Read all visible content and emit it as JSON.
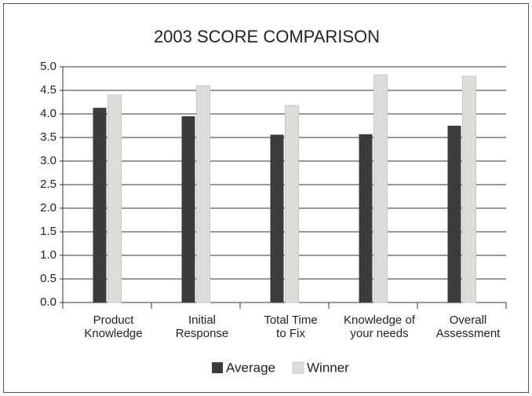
{
  "chart_data": {
    "type": "bar",
    "title": "2003 SCORE COMPARISON",
    "categories": [
      "Product\nKnowledge",
      "Initial\nResponse",
      "Total Time\nto Fix",
      "Knowledge of\nyour needs",
      "Overall\nAssessment"
    ],
    "series": [
      {
        "name": "Average",
        "color": "#3b3d3a",
        "values": [
          4.13,
          3.95,
          3.56,
          3.57,
          3.75
        ]
      },
      {
        "name": "Winner",
        "color": "#dddcd8",
        "values": [
          4.4,
          4.6,
          4.18,
          4.83,
          4.8
        ]
      }
    ],
    "ylim": [
      0,
      5
    ],
    "yticks": [
      {
        "value": 0,
        "label": "0.0"
      },
      0.5,
      {
        "value": 1,
        "label": "1.0"
      },
      1.5,
      {
        "value": 2,
        "label": "2.0"
      },
      2.5,
      {
        "value": 3,
        "label": "3.0"
      },
      3.5,
      {
        "value": 4,
        "label": "4.0"
      },
      4.5,
      {
        "value": 5,
        "label": "5.0"
      }
    ],
    "grid": true,
    "legend": "bottom"
  }
}
